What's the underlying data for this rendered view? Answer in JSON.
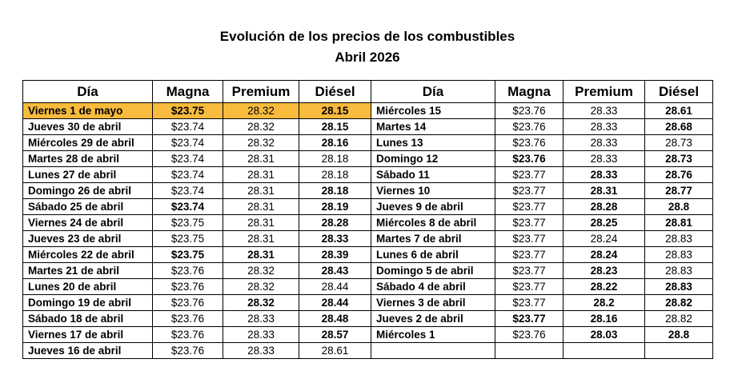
{
  "title": "Evolución de los precios de los combustibles",
  "subtitle": "Abril 2026",
  "highlight": {
    "row": 0,
    "color": "#f8bb3d"
  },
  "left": {
    "header": [
      "Día",
      "Magna",
      "Premium",
      "Diésel"
    ],
    "rows": [
      [
        "Viernes 1 de mayo",
        "$23.75",
        "28.32",
        "28.15"
      ],
      [
        "Jueves 30 de abril",
        "$23.74",
        "28.32",
        "28.15"
      ],
      [
        "Miércoles 29 de abril",
        "$23.74",
        "28.32",
        "28.16"
      ],
      [
        "Martes 28 de abril",
        "$23.74",
        "28.31",
        "28.18"
      ],
      [
        "Lunes 27 de abril",
        "$23.74",
        "28.31",
        "28.18"
      ],
      [
        "Domingo 26 de abril",
        "$23.74",
        "28.31",
        "28.18"
      ],
      [
        "Sábado 25 de abril",
        "$23.74",
        "28.31",
        "28.19"
      ],
      [
        "Viernes 24 de abril",
        "$23.75",
        "28.31",
        "28.28"
      ],
      [
        "Jueves 23 de abril",
        "$23.75",
        "28.31",
        "28.33"
      ],
      [
        "Miércoles 22 de abril",
        "$23.75",
        "28.31",
        "28.39"
      ],
      [
        "Martes 21 de abril",
        "$23.76",
        "28.32",
        "28.43"
      ],
      [
        "Lunes 20 de abril",
        "$23.76",
        "28.32",
        "28.44"
      ],
      [
        "Domingo 19 de abril",
        "$23.76",
        "28.32",
        "28.44"
      ],
      [
        "Sábado 18 de abril",
        "$23.76",
        "28.33",
        "28.48"
      ],
      [
        "Viernes 17 de abril",
        "$23.76",
        "28.33",
        "28.57"
      ],
      [
        "Jueves 16 de abril",
        "$23.76",
        "28.33",
        "28.61"
      ]
    ],
    "bold_columns": [
      [
        0,
        1,
        3
      ],
      [
        0,
        3
      ],
      [
        0,
        3
      ],
      [
        0
      ],
      [
        0
      ],
      [
        0,
        3
      ],
      [
        0,
        1,
        3
      ],
      [
        0,
        3
      ],
      [
        0,
        3
      ],
      [
        0,
        1,
        2,
        3
      ],
      [
        0,
        3
      ],
      [
        0
      ],
      [
        0,
        2,
        3
      ],
      [
        0,
        3
      ],
      [
        0,
        3
      ],
      [
        0
      ]
    ]
  },
  "right": {
    "header": [
      "Día",
      "Magna",
      "Premium",
      "Diésel"
    ],
    "rows": [
      [
        "Miércoles 15",
        "$23.76",
        "28.33",
        "28.61"
      ],
      [
        "Martes 14",
        "$23.76",
        "28.33",
        "28.68"
      ],
      [
        "Lunes 13",
        "$23.76",
        "28.33",
        "28.73"
      ],
      [
        "Domingo 12",
        "$23.76",
        "28.33",
        "28.73"
      ],
      [
        "Sábado 11",
        "$23.77",
        "28.33",
        "28.76"
      ],
      [
        "Viernes 10",
        "$23.77",
        "28.31",
        "28.77"
      ],
      [
        "Jueves 9 de abril",
        "$23.77",
        "28.28",
        "28.8"
      ],
      [
        "Miércoles 8 de abril",
        "$23.77",
        "28.25",
        "28.81"
      ],
      [
        "Martes 7 de abril",
        "$23.77",
        "28.24",
        "28.83"
      ],
      [
        "Lunes 6 de abril",
        "$23.77",
        "28.24",
        "28.83"
      ],
      [
        "Domingo 5 de abril",
        "$23.77",
        "28.23",
        "28.83"
      ],
      [
        "Sábado 4 de abril",
        "$23.77",
        "28.22",
        "28.83"
      ],
      [
        "Viernes 3 de abril",
        "$23.77",
        "28.2",
        "28.82"
      ],
      [
        "Jueves 2 de abril",
        "$23.77",
        "28.16",
        "28.82"
      ],
      [
        "Miércoles 1",
        "$23.76",
        "28.03",
        "28.8"
      ]
    ],
    "bold_columns": [
      [
        0,
        3
      ],
      [
        0,
        3
      ],
      [
        0
      ],
      [
        0,
        1,
        3
      ],
      [
        0,
        2,
        3
      ],
      [
        0,
        2,
        3
      ],
      [
        0,
        2,
        3
      ],
      [
        0,
        2,
        3
      ],
      [
        0
      ],
      [
        0,
        2
      ],
      [
        0,
        2
      ],
      [
        0,
        2,
        3
      ],
      [
        0,
        2,
        3
      ],
      [
        0,
        1,
        2
      ],
      [
        0,
        2,
        3
      ]
    ]
  }
}
